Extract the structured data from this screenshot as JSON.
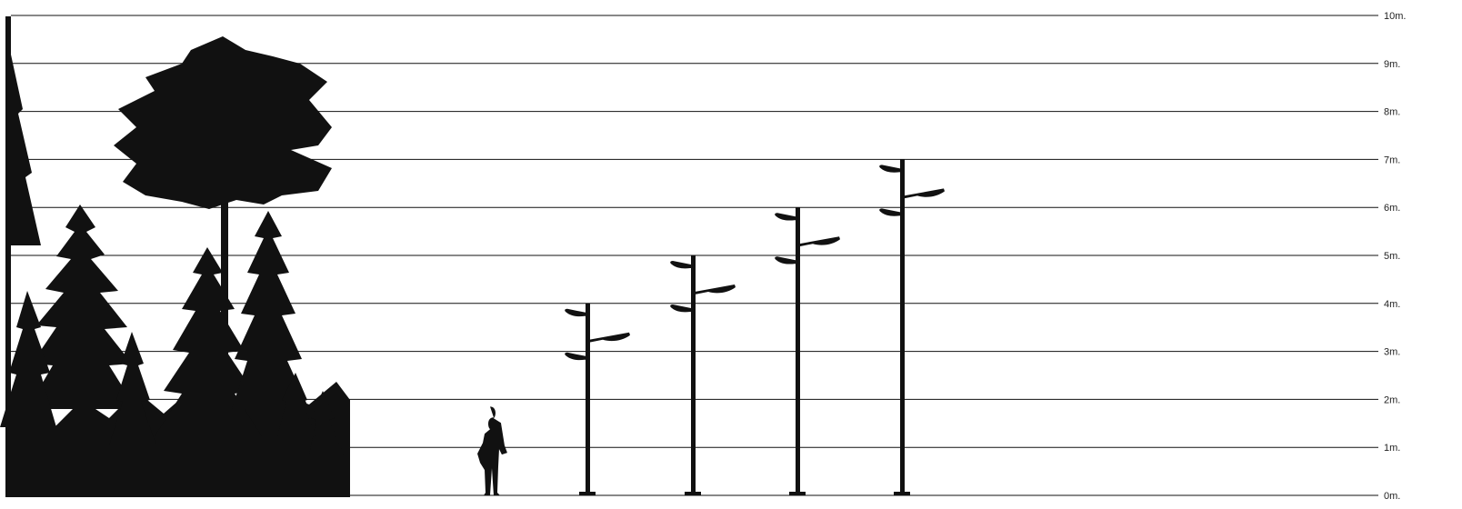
{
  "height_scale": {
    "unit": "m.",
    "labels": [
      "0m.",
      "1m.",
      "2m.",
      "3m.",
      "4m.",
      "5m.",
      "6m.",
      "7m.",
      "8m.",
      "9m.",
      "10m."
    ],
    "min": 0,
    "max": 10
  },
  "lamp_posts": [
    {
      "height_m": 4
    },
    {
      "height_m": 5
    },
    {
      "height_m": 6
    },
    {
      "height_m": 7
    }
  ],
  "person": {
    "height_m": 1.85
  },
  "colors": {
    "silhouette": "#111111",
    "background": "#ffffff"
  },
  "icons": [
    "tree-silhouette-icon",
    "person-silhouette-icon",
    "street-lamp-icon"
  ]
}
